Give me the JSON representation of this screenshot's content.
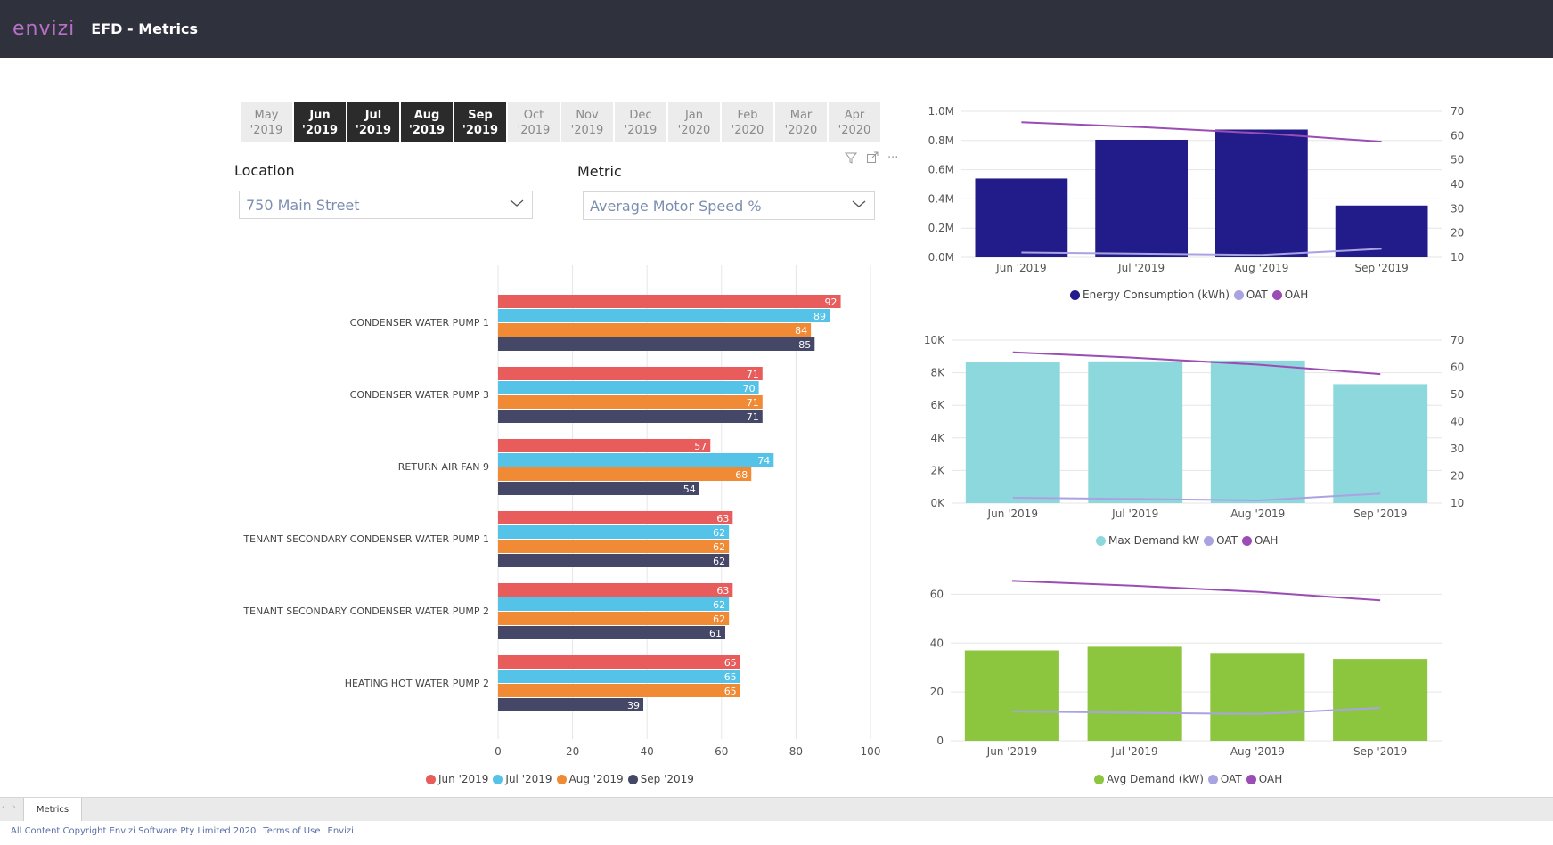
{
  "header": {
    "brand": "envizi",
    "title": "EFD - Metrics"
  },
  "months": [
    {
      "label1": "May",
      "label2": "'2019",
      "selected": false
    },
    {
      "label1": "Jun",
      "label2": "'2019",
      "selected": true
    },
    {
      "label1": "Jul",
      "label2": "'2019",
      "selected": true
    },
    {
      "label1": "Aug",
      "label2": "'2019",
      "selected": true
    },
    {
      "label1": "Sep",
      "label2": "'2019",
      "selected": true
    },
    {
      "label1": "Oct",
      "label2": "'2019",
      "selected": false
    },
    {
      "label1": "Nov",
      "label2": "'2019",
      "selected": false
    },
    {
      "label1": "Dec",
      "label2": "'2019",
      "selected": false
    },
    {
      "label1": "Jan",
      "label2": "'2020",
      "selected": false
    },
    {
      "label1": "Feb",
      "label2": "'2020",
      "selected": false
    },
    {
      "label1": "Mar",
      "label2": "'2020",
      "selected": false
    },
    {
      "label1": "Apr",
      "label2": "'2020",
      "selected": false
    }
  ],
  "filters": {
    "location_label": "Location",
    "location_value": "750 Main Street",
    "metric_label": "Metric",
    "metric_value": "Average Motor Speed %"
  },
  "toolbar": {
    "filter_icon": "filter-icon",
    "focus_icon": "focus-mode-icon",
    "more": "···"
  },
  "colors": {
    "jun": "#e85c5c",
    "jul": "#55c3e8",
    "aug": "#f08a35",
    "sep": "#454766",
    "energy": "#221c8a",
    "demand": "#8dd8dc",
    "avgdemand": "#8cc63f",
    "oat": "#aaa3e2",
    "oah": "#9b4cb5"
  },
  "chart_data": [
    {
      "type": "bar",
      "orientation": "horizontal",
      "categories": [
        "CONDENSER WATER PUMP 1",
        "CONDENSER WATER PUMP 3",
        "RETURN AIR FAN 9",
        "TENANT SECONDARY CONDENSER WATER PUMP 1",
        "TENANT SECONDARY CONDENSER WATER PUMP 2",
        "HEATING HOT WATER PUMP 2"
      ],
      "series": [
        {
          "name": "Jun '2019",
          "values": [
            92,
            71,
            57,
            63,
            63,
            65
          ]
        },
        {
          "name": "Jul '2019",
          "values": [
            89,
            70,
            74,
            62,
            62,
            65
          ]
        },
        {
          "name": "Aug '2019",
          "values": [
            84,
            71,
            68,
            62,
            62,
            65
          ]
        },
        {
          "name": "Sep '2019",
          "values": [
            85,
            71,
            54,
            62,
            61,
            39
          ]
        }
      ],
      "xlim": [
        0,
        100
      ],
      "xticks": [
        "0",
        "20",
        "40",
        "60",
        "80",
        "100"
      ],
      "legend": "bottom",
      "grid": true
    },
    {
      "type": "bar",
      "categories": [
        "Jun '2019",
        "Jul '2019",
        "Aug '2019",
        "Sep '2019"
      ],
      "series": [
        {
          "name": "Energy Consumption (kWh)",
          "values": [
            540000,
            805000,
            875000,
            355000
          ],
          "kind": "bar",
          "axis": "left"
        },
        {
          "name": "OAT",
          "values": [
            12.0,
            11.5,
            11.0,
            13.5
          ],
          "kind": "line",
          "axis": "right"
        },
        {
          "name": "OAH",
          "values": [
            65.5,
            63.5,
            61.0,
            57.5
          ],
          "kind": "line",
          "axis": "right"
        }
      ],
      "ylim": [
        0,
        1000000
      ],
      "yticks": [
        "0.0M",
        "0.2M",
        "0.4M",
        "0.6M",
        "0.8M",
        "1.0M"
      ],
      "y2lim": [
        10,
        70
      ],
      "y2ticks": [
        "10",
        "20",
        "30",
        "40",
        "50",
        "60",
        "70"
      ],
      "legend": "bottom"
    },
    {
      "type": "bar",
      "categories": [
        "Jun '2019",
        "Jul '2019",
        "Aug '2019",
        "Sep '2019"
      ],
      "series": [
        {
          "name": "Max Demand kW",
          "values": [
            8650,
            8700,
            8750,
            7300
          ],
          "kind": "bar",
          "axis": "left"
        },
        {
          "name": "OAT",
          "values": [
            12.0,
            11.5,
            11.0,
            13.5
          ],
          "kind": "line",
          "axis": "right"
        },
        {
          "name": "OAH",
          "values": [
            65.5,
            63.5,
            61.0,
            57.5
          ],
          "kind": "line",
          "axis": "right"
        }
      ],
      "ylim": [
        0,
        10000
      ],
      "yticks": [
        "0K",
        "2K",
        "4K",
        "6K",
        "8K",
        "10K"
      ],
      "y2lim": [
        10,
        70
      ],
      "y2ticks": [
        "10",
        "20",
        "30",
        "40",
        "50",
        "60",
        "70"
      ],
      "legend": "bottom"
    },
    {
      "type": "bar",
      "categories": [
        "Jun '2019",
        "Jul '2019",
        "Aug '2019",
        "Sep '2019"
      ],
      "series": [
        {
          "name": "Avg Demand (kW)",
          "values": [
            37,
            38.5,
            36,
            33.5
          ],
          "kind": "bar",
          "axis": "left"
        },
        {
          "name": "OAT",
          "values": [
            12.0,
            11.5,
            11.0,
            13.5
          ],
          "kind": "line",
          "axis": "left"
        },
        {
          "name": "OAH",
          "values": [
            65.5,
            63.5,
            61.0,
            57.5
          ],
          "kind": "line",
          "axis": "left"
        }
      ],
      "ylim": [
        0,
        70
      ],
      "yticks": [
        "0",
        "20",
        "40",
        "60"
      ],
      "legend": "bottom"
    }
  ],
  "tabs": {
    "active": "Metrics"
  },
  "footer": {
    "copyright": "All Content Copyright Envizi Software Pty Limited 2020",
    "terms": "Terms of Use",
    "link": "Envizi"
  }
}
